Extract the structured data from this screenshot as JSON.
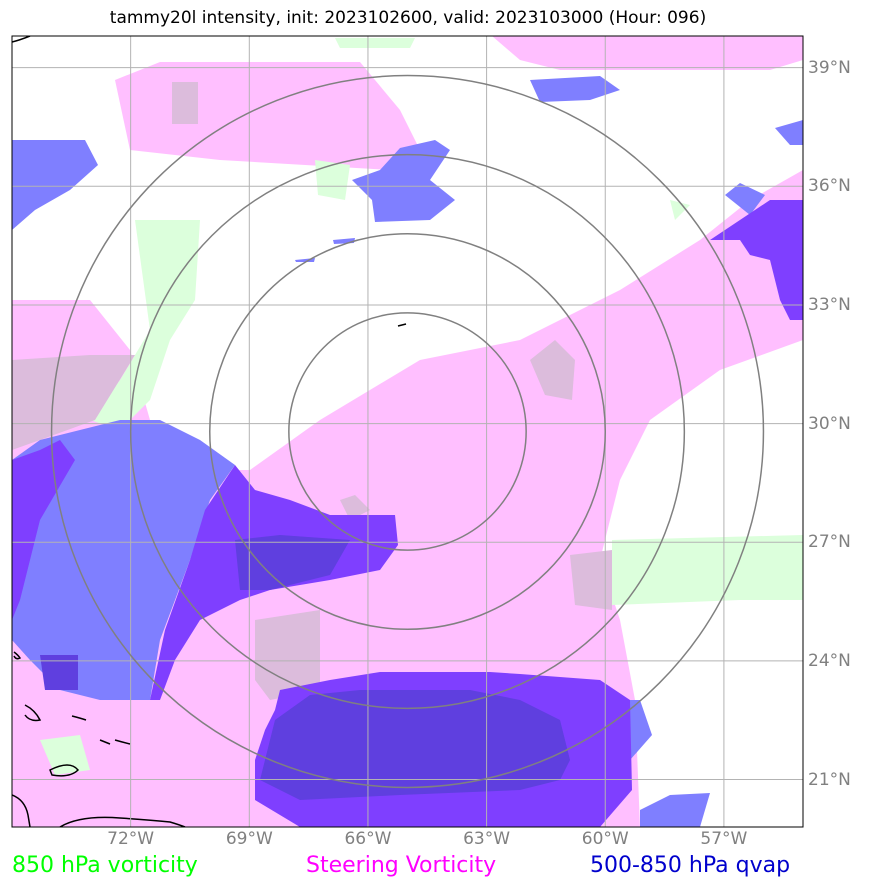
{
  "title": "tammy20l intensity, init: 2023102600, valid: 2023103000 (Hour: 096)",
  "map": {
    "lon_range": [
      -75,
      -55
    ],
    "lat_range": [
      19.8,
      39.8
    ],
    "center": {
      "lon": -65,
      "lat": 29.8
    },
    "range_rings_deg": [
      3,
      5,
      7,
      9
    ],
    "lon_ticks": [
      {
        "value": -72,
        "label": "72°W"
      },
      {
        "value": -69,
        "label": "69°W"
      },
      {
        "value": -66,
        "label": "66°W"
      },
      {
        "value": -63,
        "label": "63°W"
      },
      {
        "value": -60,
        "label": "60°W"
      },
      {
        "value": -57,
        "label": "57°W"
      }
    ],
    "lat_ticks": [
      {
        "value": 39,
        "label": "39°N"
      },
      {
        "value": 36,
        "label": "36°N"
      },
      {
        "value": 33,
        "label": "33°N"
      },
      {
        "value": 30,
        "label": "30°N"
      },
      {
        "value": 27,
        "label": "27°N"
      },
      {
        "value": 24,
        "label": "24°N"
      },
      {
        "value": 21,
        "label": "21°N"
      }
    ]
  },
  "legend": {
    "vort850": {
      "label": "850 hPa vorticity",
      "color": "#00ff00"
    },
    "steering": {
      "label": "Steering Vorticity",
      "color": "#ff00ff"
    },
    "qvap": {
      "label": "500-850 hPa qvap",
      "color": "#0000cc"
    }
  },
  "colors": {
    "pink_fill": "#ffbfff",
    "green_fill": "#dcffdc",
    "blue_fill": "#7f7fff",
    "purple_fill": "#7f3fff",
    "gridline": "#b3b3b3",
    "rings": "#808080"
  }
}
